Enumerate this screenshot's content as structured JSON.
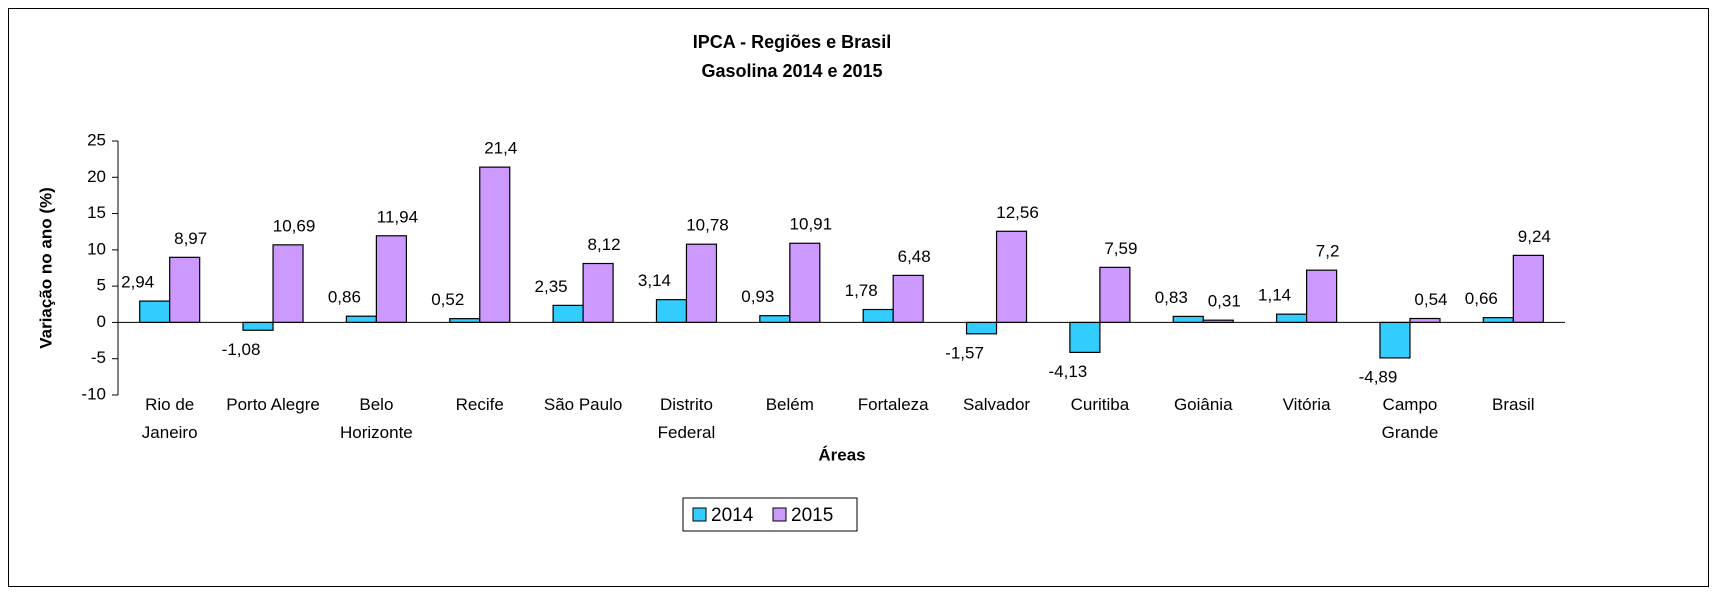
{
  "chart_data": {
    "type": "bar",
    "title": "IPCA - Regiões e Brasil",
    "subtitle": "Gasolina 2014 e 2015",
    "x_label": "Áreas",
    "y_label": "Variação no ano (%)",
    "categories": [
      "Rio de Janeiro",
      "Porto Alegre",
      "Belo Horizonte",
      "Recife",
      "São Paulo",
      "Distrito Federal",
      "Belém",
      "Fortaleza",
      "Salvador",
      "Curitiba",
      "Goiânia",
      "Vitória",
      "Campo Grande",
      "Brasil"
    ],
    "series": [
      {
        "name": "2014",
        "color": "#33ccff",
        "values": [
          2.94,
          -1.08,
          0.86,
          0.52,
          2.35,
          3.14,
          0.93,
          1.78,
          -1.57,
          -4.13,
          0.83,
          1.14,
          -4.89,
          0.66
        ],
        "value_labels": [
          "2,94",
          "-1,08",
          "0,86",
          "0,52",
          "2,35",
          "3,14",
          "0,93",
          "1,78",
          "-1,57",
          "-4,13",
          "0,83",
          "1,14",
          "-4,89",
          "0,66"
        ]
      },
      {
        "name": "2015",
        "color": "#cc99ff",
        "values": [
          8.97,
          10.69,
          11.94,
          21.4,
          8.12,
          10.78,
          10.91,
          6.48,
          12.56,
          7.59,
          0.31,
          7.2,
          0.54,
          9.24
        ],
        "value_labels": [
          "8,97",
          "10,69",
          "11,94",
          "21,4",
          "8,12",
          "10,78",
          "10,91",
          "6,48",
          "12,56",
          "7,59",
          "0,31",
          "7,2",
          "0,54",
          "9,24"
        ]
      }
    ],
    "ylim": [
      -10,
      25
    ],
    "yticks": [
      -10,
      -5,
      0,
      5,
      10,
      15,
      20,
      25
    ],
    "legend": "bottom"
  }
}
